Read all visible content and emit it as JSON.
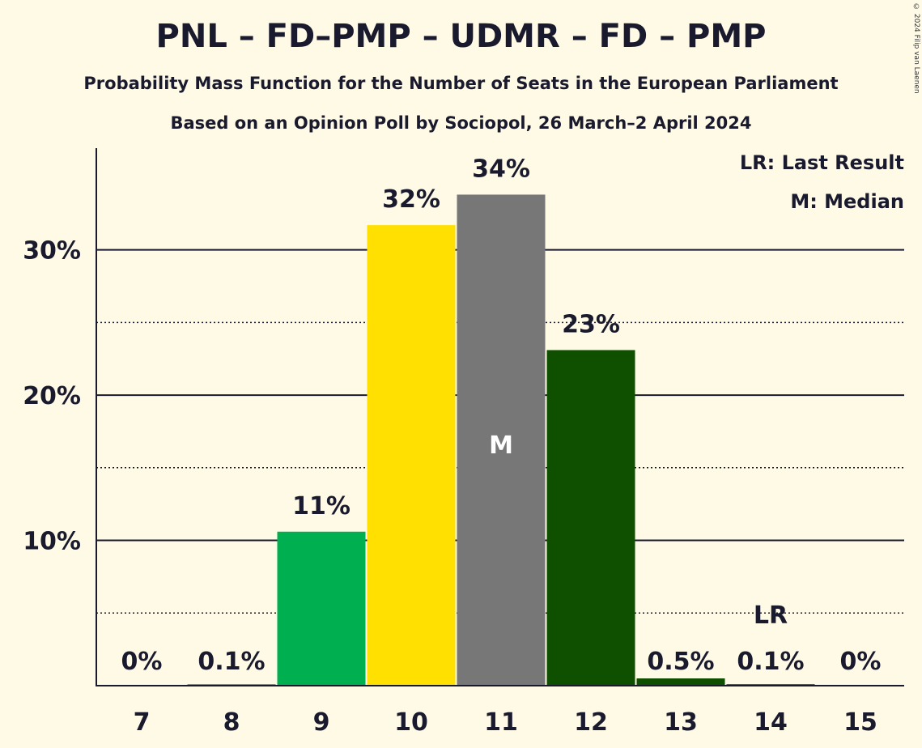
{
  "title": "PNL – FD–PMP – UDMR – FD – PMP",
  "subtitle": "Probability Mass Function for the Number of Seats in the European Parliament",
  "subtitle2": "Based on an Opinion Poll by Sociopol, 26 March–2 April 2024",
  "copyright": "© 2024 Filip van Laenen",
  "legend": {
    "last_result": "LR: Last Result",
    "median": "M: Median"
  },
  "chart_data": {
    "type": "bar",
    "categories": [
      "7",
      "8",
      "9",
      "10",
      "11",
      "12",
      "13",
      "14",
      "15"
    ],
    "values": [
      0,
      0.1,
      10.6,
      31.7,
      33.8,
      23.1,
      0.5,
      0.1,
      0
    ],
    "data_labels": [
      "0%",
      "0.1%",
      "11%",
      "32%",
      "34%",
      "23%",
      "0.5%",
      "0.1%",
      "0%"
    ],
    "colors": [
      "#00b050",
      "#00b050",
      "#00b050",
      "#ffe000",
      "#777777",
      "#0f4f00",
      "#0f4f00",
      "#0f4f00",
      "#0f4f00"
    ],
    "ylim": [
      0,
      37
    ],
    "yticks": [
      10,
      20,
      30
    ],
    "ytick_labels": [
      "10%",
      "20%",
      "30%"
    ],
    "minor_gridlines": [
      5,
      15,
      25
    ],
    "median_category": "11",
    "median_marker": "M",
    "last_result_category": "14",
    "last_result_marker": "LR"
  }
}
